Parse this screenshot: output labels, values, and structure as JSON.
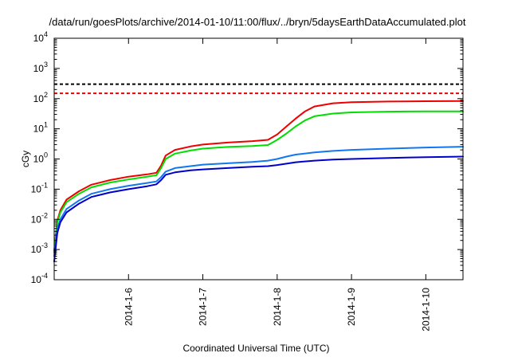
{
  "chart_data": {
    "type": "line",
    "title": "/data/run/goesPlots/archive/2014-01-10/11:00/flux/../bryn/5daysEarthDataAccumulated.plot",
    "xlabel": "Coordinated Universal Time (UTC)",
    "ylabel": "cGy",
    "y_scale": "log",
    "ylim": [
      0.0001,
      10000
    ],
    "xlim": [
      "2014-01-05 00:00",
      "2014-01-10 12:00"
    ],
    "x_ticks": [
      "2014-1-6",
      "2014-1-7",
      "2014-1-8",
      "2014-1-9",
      "2014-1-10"
    ],
    "y_ticks": [
      {
        "base": "10",
        "exp": "-4"
      },
      {
        "base": "10",
        "exp": "-3"
      },
      {
        "base": "10",
        "exp": "-2"
      },
      {
        "base": "10",
        "exp": "-1"
      },
      {
        "base": "10",
        "exp": "0"
      },
      {
        "base": "10",
        "exp": "1"
      },
      {
        "base": "10",
        "exp": "2"
      },
      {
        "base": "10",
        "exp": "3"
      },
      {
        "base": "10",
        "exp": "4"
      }
    ],
    "grid": false,
    "legend": "none",
    "reference_lines": [
      {
        "y": 300,
        "color": "#000000",
        "style": "dashed"
      },
      {
        "y": 150,
        "color": "#ee0000",
        "style": "dashed"
      }
    ],
    "series": [
      {
        "color": "#ee0000",
        "points": [
          [
            "2014-01-05 00:00",
            0.0009
          ],
          [
            "2014-01-05 01:00",
            0.009
          ],
          [
            "2014-01-05 02:00",
            0.02
          ],
          [
            "2014-01-05 04:00",
            0.045
          ],
          [
            "2014-01-05 08:00",
            0.085
          ],
          [
            "2014-01-05 12:00",
            0.14
          ],
          [
            "2014-01-05 18:00",
            0.2
          ],
          [
            "2014-01-06 00:00",
            0.26
          ],
          [
            "2014-01-06 06:00",
            0.31
          ],
          [
            "2014-01-06 09:00",
            0.35
          ],
          [
            "2014-01-06 10:30",
            0.6
          ],
          [
            "2014-01-06 12:00",
            1.3
          ],
          [
            "2014-01-06 15:00",
            2.0
          ],
          [
            "2014-01-06 20:00",
            2.6
          ],
          [
            "2014-01-07 00:00",
            3.0
          ],
          [
            "2014-01-07 08:00",
            3.5
          ],
          [
            "2014-01-07 16:00",
            3.9
          ],
          [
            "2014-01-07 21:00",
            4.3
          ],
          [
            "2014-01-08 00:00",
            6.5
          ],
          [
            "2014-01-08 03:00",
            12
          ],
          [
            "2014-01-08 06:00",
            22
          ],
          [
            "2014-01-08 09:00",
            38
          ],
          [
            "2014-01-08 12:00",
            55
          ],
          [
            "2014-01-08 18:00",
            70
          ],
          [
            "2014-01-09 00:00",
            76
          ],
          [
            "2014-01-09 12:00",
            80
          ],
          [
            "2014-01-10 00:00",
            82
          ],
          [
            "2014-01-10 12:00",
            83
          ]
        ]
      },
      {
        "color": "#00dd00",
        "points": [
          [
            "2014-01-05 00:00",
            0.0008
          ],
          [
            "2014-01-05 01:00",
            0.008
          ],
          [
            "2014-01-05 02:00",
            0.017
          ],
          [
            "2014-01-05 04:00",
            0.037
          ],
          [
            "2014-01-05 08:00",
            0.07
          ],
          [
            "2014-01-05 12:00",
            0.115
          ],
          [
            "2014-01-05 18:00",
            0.165
          ],
          [
            "2014-01-06 00:00",
            0.21
          ],
          [
            "2014-01-06 06:00",
            0.26
          ],
          [
            "2014-01-06 09:00",
            0.29
          ],
          [
            "2014-01-06 10:30",
            0.5
          ],
          [
            "2014-01-06 12:00",
            1.0
          ],
          [
            "2014-01-06 15:00",
            1.5
          ],
          [
            "2014-01-06 20:00",
            1.9
          ],
          [
            "2014-01-07 00:00",
            2.2
          ],
          [
            "2014-01-07 08:00",
            2.5
          ],
          [
            "2014-01-07 16:00",
            2.7
          ],
          [
            "2014-01-07 21:00",
            2.9
          ],
          [
            "2014-01-08 00:00",
            4.3
          ],
          [
            "2014-01-08 03:00",
            7.0
          ],
          [
            "2014-01-08 06:00",
            12
          ],
          [
            "2014-01-08 09:00",
            19
          ],
          [
            "2014-01-08 12:00",
            26
          ],
          [
            "2014-01-08 18:00",
            32
          ],
          [
            "2014-01-09 00:00",
            35
          ],
          [
            "2014-01-09 12:00",
            37
          ],
          [
            "2014-01-10 00:00",
            38
          ],
          [
            "2014-01-10 12:00",
            38
          ]
        ]
      },
      {
        "color": "#1177ee",
        "points": [
          [
            "2014-01-05 00:00",
            0.0006
          ],
          [
            "2014-01-05 01:00",
            0.005
          ],
          [
            "2014-01-05 02:00",
            0.01
          ],
          [
            "2014-01-05 04:00",
            0.022
          ],
          [
            "2014-01-05 08:00",
            0.042
          ],
          [
            "2014-01-05 12:00",
            0.07
          ],
          [
            "2014-01-05 18:00",
            0.1
          ],
          [
            "2014-01-06 00:00",
            0.13
          ],
          [
            "2014-01-06 06:00",
            0.16
          ],
          [
            "2014-01-06 09:00",
            0.18
          ],
          [
            "2014-01-06 10:30",
            0.25
          ],
          [
            "2014-01-06 12:00",
            0.38
          ],
          [
            "2014-01-06 15:00",
            0.5
          ],
          [
            "2014-01-06 20:00",
            0.58
          ],
          [
            "2014-01-07 00:00",
            0.65
          ],
          [
            "2014-01-07 08:00",
            0.72
          ],
          [
            "2014-01-07 16:00",
            0.8
          ],
          [
            "2014-01-07 21:00",
            0.88
          ],
          [
            "2014-01-08 00:00",
            1.0
          ],
          [
            "2014-01-08 03:00",
            1.2
          ],
          [
            "2014-01-08 06:00",
            1.4
          ],
          [
            "2014-01-08 12:00",
            1.65
          ],
          [
            "2014-01-08 18:00",
            1.85
          ],
          [
            "2014-01-09 00:00",
            2.0
          ],
          [
            "2014-01-09 12:00",
            2.2
          ],
          [
            "2014-01-10 00:00",
            2.4
          ],
          [
            "2014-01-10 12:00",
            2.55
          ]
        ]
      },
      {
        "color": "#0000cc",
        "points": [
          [
            "2014-01-05 00:00",
            0.0004
          ],
          [
            "2014-01-05 01:00",
            0.0035
          ],
          [
            "2014-01-05 02:00",
            0.008
          ],
          [
            "2014-01-05 04:00",
            0.017
          ],
          [
            "2014-01-05 08:00",
            0.033
          ],
          [
            "2014-01-05 12:00",
            0.055
          ],
          [
            "2014-01-05 18:00",
            0.078
          ],
          [
            "2014-01-06 00:00",
            0.1
          ],
          [
            "2014-01-06 06:00",
            0.125
          ],
          [
            "2014-01-06 09:00",
            0.145
          ],
          [
            "2014-01-06 10:30",
            0.2
          ],
          [
            "2014-01-06 12:00",
            0.3
          ],
          [
            "2014-01-06 15:00",
            0.36
          ],
          [
            "2014-01-06 20:00",
            0.42
          ],
          [
            "2014-01-07 00:00",
            0.45
          ],
          [
            "2014-01-07 08:00",
            0.5
          ],
          [
            "2014-01-07 16:00",
            0.55
          ],
          [
            "2014-01-07 21:00",
            0.58
          ],
          [
            "2014-01-08 00:00",
            0.63
          ],
          [
            "2014-01-08 03:00",
            0.7
          ],
          [
            "2014-01-08 06:00",
            0.78
          ],
          [
            "2014-01-08 12:00",
            0.88
          ],
          [
            "2014-01-08 18:00",
            0.96
          ],
          [
            "2014-01-09 00:00",
            1.0
          ],
          [
            "2014-01-09 12:00",
            1.08
          ],
          [
            "2014-01-10 00:00",
            1.15
          ],
          [
            "2014-01-10 12:00",
            1.2
          ]
        ]
      }
    ]
  }
}
